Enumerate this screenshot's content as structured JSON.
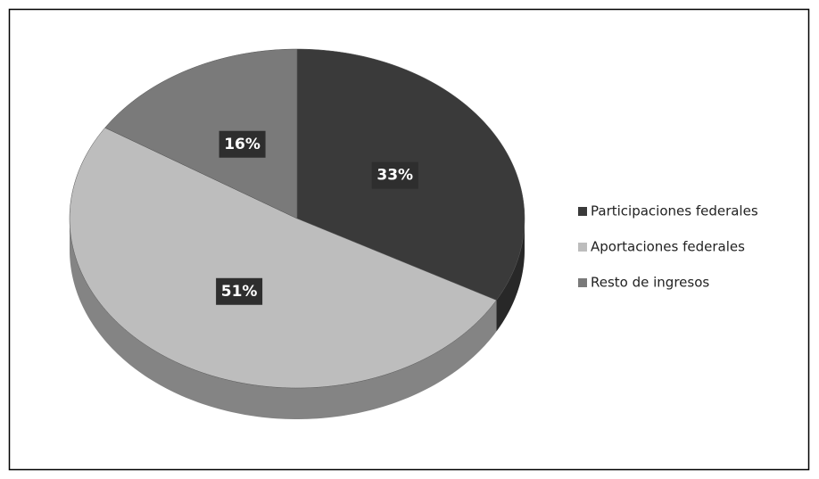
{
  "chart_data": {
    "type": "pie",
    "categories": [
      "Participaciones federales",
      "Aportaciones federales",
      "Resto de ingresos"
    ],
    "values": [
      33,
      51,
      16
    ],
    "value_labels": [
      "33%",
      "51%",
      "16%"
    ],
    "colors": [
      "#3a3a3a",
      "#bdbdbd",
      "#7a7a7a"
    ],
    "legend": "right"
  }
}
